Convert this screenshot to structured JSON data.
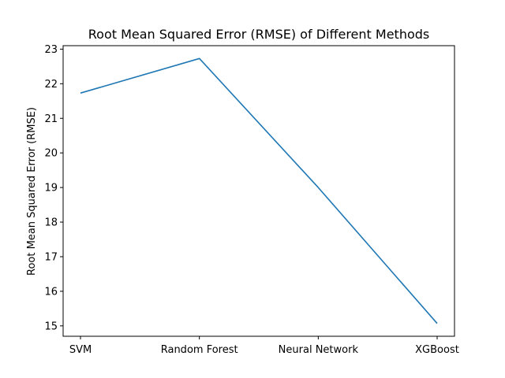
{
  "chart_data": {
    "type": "line",
    "title": "Root Mean Squared Error (RMSE) of Different Methods",
    "xlabel": "",
    "ylabel": "Root Mean Squared Error (RMSE)",
    "categories": [
      "SVM",
      "Random Forest",
      "Neural Network",
      "XGBoost"
    ],
    "values": [
      21.73,
      22.73,
      19.0,
      15.07
    ],
    "yticks": [
      15,
      16,
      17,
      18,
      19,
      20,
      21,
      22,
      23
    ],
    "ylim": [
      14.7,
      23.1
    ],
    "grid": false,
    "line_color": "#1f77b4"
  }
}
